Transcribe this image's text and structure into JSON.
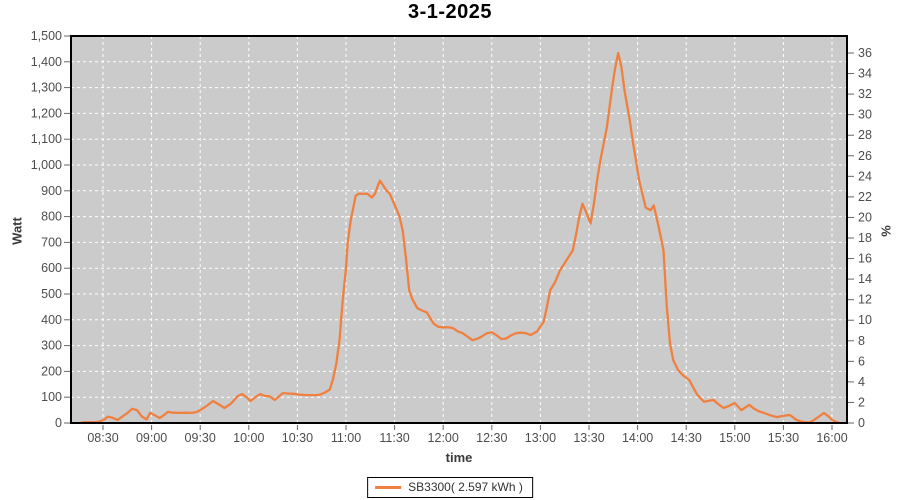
{
  "chart_data": {
    "type": "line",
    "title": "3-1-2025",
    "xlabel": "time",
    "ylabel": "Watt",
    "y2label": "%",
    "grid": true,
    "legend_position": "bottom",
    "x_tick_labels": [
      "08:30",
      "09:00",
      "09:30",
      "10:00",
      "10:30",
      "11:00",
      "11:30",
      "12:00",
      "12:30",
      "13:00",
      "13:30",
      "14:00",
      "14:30",
      "15:00",
      "15:30",
      "16:00"
    ],
    "x_range": [
      "08:10",
      "16:09"
    ],
    "ylim": [
      0,
      1500
    ],
    "y_tick_step": 100,
    "y2lim": [
      0,
      36
    ],
    "y2_tick_step": 2,
    "colors": {
      "series": "#f08040",
      "plot_background": "#cbcbcb",
      "gridline": "#ffffff",
      "frame": "#000000",
      "tick_text": "#4d4d4d",
      "tick_mark": "#666666"
    },
    "series": [
      {
        "name": "SB3300( 2.597 kWh )",
        "color": "#f08040",
        "points": [
          [
            "08:16",
            0
          ],
          [
            "08:18",
            3
          ],
          [
            "08:22",
            3
          ],
          [
            "08:26",
            3
          ],
          [
            "08:29",
            8
          ],
          [
            "08:31",
            14
          ],
          [
            "08:33",
            25
          ],
          [
            "08:36",
            20
          ],
          [
            "08:39",
            12
          ],
          [
            "08:42",
            25
          ],
          [
            "08:45",
            38
          ],
          [
            "08:48",
            55
          ],
          [
            "08:51",
            50
          ],
          [
            "08:54",
            25
          ],
          [
            "08:57",
            14
          ],
          [
            "08:59",
            39
          ],
          [
            "09:02",
            30
          ],
          [
            "09:05",
            19
          ],
          [
            "09:08",
            32
          ],
          [
            "09:10",
            43
          ],
          [
            "09:13",
            40
          ],
          [
            "09:17",
            39
          ],
          [
            "09:21",
            40
          ],
          [
            "09:25",
            39
          ],
          [
            "09:28",
            43
          ],
          [
            "09:33",
            62
          ],
          [
            "09:38",
            85
          ],
          [
            "09:42",
            70
          ],
          [
            "09:45",
            58
          ],
          [
            "09:49",
            75
          ],
          [
            "09:53",
            104
          ],
          [
            "09:56",
            112
          ],
          [
            "09:59",
            98
          ],
          [
            "10:01",
            85
          ],
          [
            "10:04",
            100
          ],
          [
            "10:07",
            112
          ],
          [
            "10:10",
            105
          ],
          [
            "10:13",
            103
          ],
          [
            "10:16",
            89
          ],
          [
            "10:19",
            105
          ],
          [
            "10:21",
            116
          ],
          [
            "10:25",
            114
          ],
          [
            "10:28",
            113
          ],
          [
            "10:31",
            110
          ],
          [
            "10:36",
            108
          ],
          [
            "10:41",
            108
          ],
          [
            "10:44",
            110
          ],
          [
            "10:47",
            118
          ],
          [
            "10:50",
            130
          ],
          [
            "10:52",
            170
          ],
          [
            "10:54",
            230
          ],
          [
            "10:56",
            320
          ],
          [
            "10:58",
            480
          ],
          [
            "11:00",
            600
          ],
          [
            "11:01",
            696
          ],
          [
            "11:03",
            790
          ],
          [
            "11:05",
            850
          ],
          [
            "11:06",
            881
          ],
          [
            "11:08",
            889
          ],
          [
            "11:11",
            888
          ],
          [
            "11:13",
            889
          ],
          [
            "11:16",
            874
          ],
          [
            "11:18",
            890
          ],
          [
            "11:20",
            925
          ],
          [
            "11:21",
            939
          ],
          [
            "11:23",
            920
          ],
          [
            "11:25",
            900
          ],
          [
            "11:27",
            889
          ],
          [
            "11:29",
            860
          ],
          [
            "11:31",
            831
          ],
          [
            "11:33",
            800
          ],
          [
            "11:35",
            746
          ],
          [
            "11:37",
            640
          ],
          [
            "11:39",
            514
          ],
          [
            "11:41",
            480
          ],
          [
            "11:44",
            445
          ],
          [
            "11:47",
            436
          ],
          [
            "11:50",
            428
          ],
          [
            "11:54",
            386
          ],
          [
            "11:57",
            373
          ],
          [
            "12:00",
            371
          ],
          [
            "12:03",
            371
          ],
          [
            "12:06",
            368
          ],
          [
            "12:09",
            355
          ],
          [
            "12:12",
            348
          ],
          [
            "12:15",
            335
          ],
          [
            "12:18",
            321
          ],
          [
            "12:21",
            326
          ],
          [
            "12:24",
            336
          ],
          [
            "12:27",
            348
          ],
          [
            "12:30",
            352
          ],
          [
            "12:33",
            340
          ],
          [
            "12:36",
            325
          ],
          [
            "12:39",
            328
          ],
          [
            "12:42",
            340
          ],
          [
            "12:45",
            348
          ],
          [
            "12:48",
            350
          ],
          [
            "12:51",
            348
          ],
          [
            "12:54",
            341
          ],
          [
            "12:58",
            355
          ],
          [
            "13:00",
            375
          ],
          [
            "13:02",
            391
          ],
          [
            "13:04",
            450
          ],
          [
            "13:06",
            514
          ],
          [
            "13:09",
            545
          ],
          [
            "13:12",
            590
          ],
          [
            "13:16",
            630
          ],
          [
            "13:20",
            669
          ],
          [
            "13:22",
            730
          ],
          [
            "13:24",
            800
          ],
          [
            "13:26",
            850
          ],
          [
            "13:28",
            820
          ],
          [
            "13:31",
            773
          ],
          [
            "13:33",
            850
          ],
          [
            "13:35",
            940
          ],
          [
            "13:37",
            1017
          ],
          [
            "13:41",
            1144
          ],
          [
            "13:44",
            1287
          ],
          [
            "13:46",
            1370
          ],
          [
            "13:48",
            1434
          ],
          [
            "13:50",
            1380
          ],
          [
            "13:52",
            1287
          ],
          [
            "13:55",
            1180
          ],
          [
            "13:57",
            1094
          ],
          [
            "14:01",
            940
          ],
          [
            "14:05",
            835
          ],
          [
            "14:08",
            825
          ],
          [
            "14:10",
            843
          ],
          [
            "14:13",
            760
          ],
          [
            "14:16",
            669
          ],
          [
            "14:18",
            450
          ],
          [
            "14:20",
            309
          ],
          [
            "14:22",
            244
          ],
          [
            "14:25",
            205
          ],
          [
            "14:28",
            185
          ],
          [
            "14:32",
            166
          ],
          [
            "14:35",
            130
          ],
          [
            "14:37",
            108
          ],
          [
            "14:41",
            82
          ],
          [
            "14:44",
            86
          ],
          [
            "14:47",
            89
          ],
          [
            "14:49",
            77
          ],
          [
            "14:53",
            58
          ],
          [
            "14:56",
            65
          ],
          [
            "15:00",
            77
          ],
          [
            "15:04",
            50
          ],
          [
            "15:07",
            62
          ],
          [
            "15:09",
            70
          ],
          [
            "15:12",
            55
          ],
          [
            "15:15",
            45
          ],
          [
            "15:18",
            39
          ],
          [
            "15:22",
            30
          ],
          [
            "15:26",
            23
          ],
          [
            "15:30",
            28
          ],
          [
            "15:34",
            31
          ],
          [
            "15:38",
            12
          ],
          [
            "15:41",
            6
          ],
          [
            "15:43",
            4
          ],
          [
            "15:46",
            2
          ],
          [
            "15:48",
            8
          ],
          [
            "15:52",
            25
          ],
          [
            "15:55",
            39
          ],
          [
            "15:58",
            25
          ],
          [
            "16:00",
            12
          ],
          [
            "16:03",
            3
          ],
          [
            "16:05",
            0
          ]
        ]
      }
    ]
  }
}
